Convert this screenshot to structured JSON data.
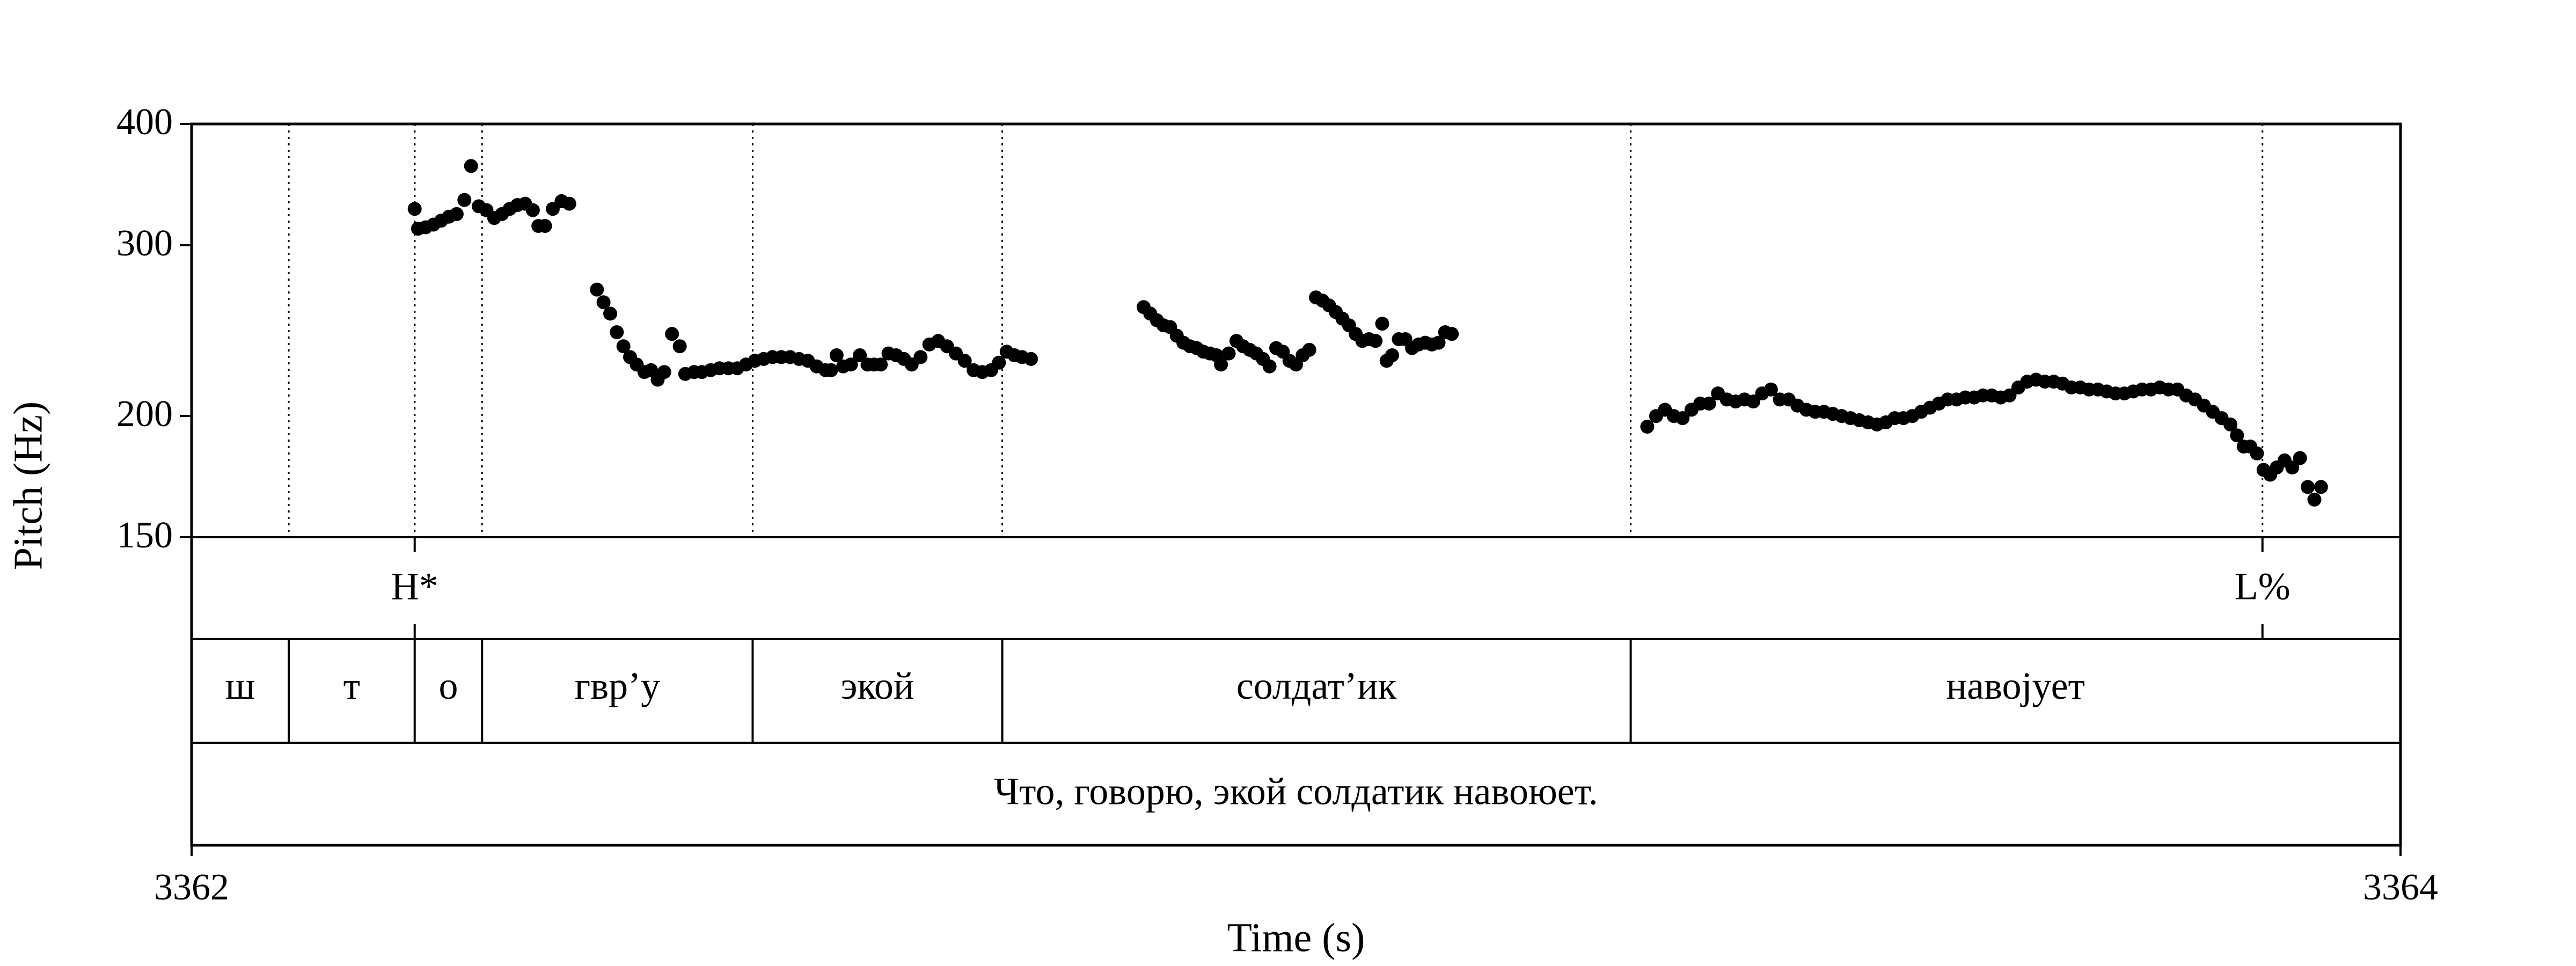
{
  "chart_data": {
    "type": "scatter",
    "title": "",
    "xlabel": "Time (s)",
    "ylabel": "Pitch (Hz)",
    "xlim": [
      3362,
      3364
    ],
    "ylim": [
      150,
      400
    ],
    "y_scale": "log",
    "x_ticks": [
      "3362",
      "3364"
    ],
    "y_ticks": [
      {
        "label": "400",
        "value": 400
      },
      {
        "label": "300",
        "value": 300
      },
      {
        "label": "200",
        "value": 200
      },
      {
        "label": "150",
        "value": 150
      }
    ],
    "tone_tier": [
      {
        "label": "H*",
        "time": 3362.202
      },
      {
        "label": "L%",
        "time": 3363.875
      }
    ],
    "segments": [
      {
        "label": "ш",
        "start": 3362.0,
        "end": 3362.088
      },
      {
        "label": "т",
        "start": 3362.088,
        "end": 3362.202
      },
      {
        "label": "о",
        "start": 3362.202,
        "end": 3362.263
      },
      {
        "label": "гвр’у",
        "start": 3362.263,
        "end": 3362.508
      },
      {
        "label": "экой",
        "start": 3362.508,
        "end": 3362.734
      },
      {
        "label": "солдат’ик",
        "start": 3362.734,
        "end": 3363.303
      },
      {
        "label": "навојует",
        "start": 3363.303,
        "end": 3364.0
      }
    ],
    "sentence": "Что, говорю, экой солдатик навоюет.",
    "pitch_points": [
      [
        3362.202,
        327
      ],
      [
        3362.205,
        312
      ],
      [
        3362.212,
        313
      ],
      [
        3362.219,
        315
      ],
      [
        3362.226,
        318
      ],
      [
        3362.233,
        321
      ],
      [
        3362.24,
        323
      ],
      [
        3362.247,
        334
      ],
      [
        3362.253,
        362
      ],
      [
        3362.26,
        329
      ],
      [
        3362.267,
        326
      ],
      [
        3362.274,
        320
      ],
      [
        3362.281,
        323
      ],
      [
        3362.288,
        327
      ],
      [
        3362.295,
        330
      ],
      [
        3362.302,
        331
      ],
      [
        3362.309,
        326
      ],
      [
        3362.314,
        314
      ],
      [
        3362.32,
        314
      ],
      [
        3362.327,
        327
      ],
      [
        3362.335,
        333
      ],
      [
        3362.342,
        331
      ],
      [
        3362.367,
        270
      ],
      [
        3362.373,
        262
      ],
      [
        3362.379,
        255
      ],
      [
        3362.385,
        244
      ],
      [
        3362.391,
        236
      ],
      [
        3362.397,
        230
      ],
      [
        3362.403,
        226
      ],
      [
        3362.41,
        222
      ],
      [
        3362.416,
        223
      ],
      [
        3362.422,
        218
      ],
      [
        3362.428,
        222
      ],
      [
        3362.435,
        243
      ],
      [
        3362.442,
        236
      ],
      [
        3362.447,
        221
      ],
      [
        3362.455,
        222
      ],
      [
        3362.462,
        222
      ],
      [
        3362.47,
        223
      ],
      [
        3362.478,
        224
      ],
      [
        3362.486,
        224
      ],
      [
        3362.494,
        224
      ],
      [
        3362.502,
        226
      ],
      [
        3362.51,
        228
      ],
      [
        3362.518,
        229
      ],
      [
        3362.526,
        230
      ],
      [
        3362.534,
        230
      ],
      [
        3362.542,
        230
      ],
      [
        3362.55,
        229
      ],
      [
        3362.558,
        228
      ],
      [
        3362.566,
        225
      ],
      [
        3362.574,
        223
      ],
      [
        3362.579,
        223
      ],
      [
        3362.584,
        231
      ],
      [
        3362.59,
        225
      ],
      [
        3362.597,
        226
      ],
      [
        3362.605,
        231
      ],
      [
        3362.612,
        226
      ],
      [
        3362.618,
        226
      ],
      [
        3362.624,
        226
      ],
      [
        3362.631,
        232
      ],
      [
        3362.638,
        231
      ],
      [
        3362.645,
        229
      ],
      [
        3362.652,
        226
      ],
      [
        3362.66,
        230
      ],
      [
        3362.668,
        237
      ],
      [
        3362.676,
        239
      ],
      [
        3362.684,
        236
      ],
      [
        3362.692,
        232
      ],
      [
        3362.7,
        228
      ],
      [
        3362.708,
        223
      ],
      [
        3362.716,
        222
      ],
      [
        3362.724,
        223
      ],
      [
        3362.731,
        227
      ],
      [
        3362.738,
        233
      ],
      [
        3362.745,
        231
      ],
      [
        3362.752,
        230
      ],
      [
        3362.76,
        229
      ],
      [
        3362.862,
        259
      ],
      [
        3362.868,
        255
      ],
      [
        3362.874,
        251
      ],
      [
        3362.88,
        248
      ],
      [
        3362.886,
        247
      ],
      [
        3362.892,
        242
      ],
      [
        3362.898,
        238
      ],
      [
        3362.904,
        236
      ],
      [
        3362.91,
        235
      ],
      [
        3362.916,
        233
      ],
      [
        3362.922,
        232
      ],
      [
        3362.928,
        231
      ],
      [
        3362.932,
        226
      ],
      [
        3362.939,
        232
      ],
      [
        3362.946,
        239
      ],
      [
        3362.952,
        236
      ],
      [
        3362.958,
        234
      ],
      [
        3362.964,
        232
      ],
      [
        3362.97,
        229
      ],
      [
        3362.976,
        225
      ],
      [
        3362.982,
        235
      ],
      [
        3362.988,
        233
      ],
      [
        3362.994,
        228
      ],
      [
        3363.0,
        226
      ],
      [
        3363.006,
        231
      ],
      [
        3363.012,
        234
      ],
      [
        3363.018,
        265
      ],
      [
        3363.024,
        263
      ],
      [
        3363.03,
        260
      ],
      [
        3363.036,
        256
      ],
      [
        3363.042,
        252
      ],
      [
        3363.048,
        248
      ],
      [
        3363.054,
        243
      ],
      [
        3363.06,
        239
      ],
      [
        3363.066,
        240
      ],
      [
        3363.072,
        239
      ],
      [
        3363.078,
        249
      ],
      [
        3363.082,
        228
      ],
      [
        3363.087,
        231
      ],
      [
        3363.093,
        240
      ],
      [
        3363.099,
        240
      ],
      [
        3363.105,
        235
      ],
      [
        3363.111,
        237
      ],
      [
        3363.117,
        238
      ],
      [
        3363.123,
        237
      ],
      [
        3363.129,
        238
      ],
      [
        3363.135,
        244
      ],
      [
        3363.141,
        243
      ],
      [
        3363.318,
        195
      ],
      [
        3363.326,
        200
      ],
      [
        3363.334,
        203
      ],
      [
        3363.342,
        200
      ],
      [
        3363.35,
        199
      ],
      [
        3363.358,
        203
      ],
      [
        3363.366,
        206
      ],
      [
        3363.374,
        206
      ],
      [
        3363.382,
        211
      ],
      [
        3363.39,
        208
      ],
      [
        3363.398,
        207
      ],
      [
        3363.406,
        208
      ],
      [
        3363.414,
        207
      ],
      [
        3363.422,
        211
      ],
      [
        3363.43,
        213
      ],
      [
        3363.438,
        208
      ],
      [
        3363.446,
        208
      ],
      [
        3363.454,
        205
      ],
      [
        3363.462,
        203
      ],
      [
        3363.47,
        202
      ],
      [
        3363.478,
        202
      ],
      [
        3363.486,
        201
      ],
      [
        3363.494,
        200
      ],
      [
        3363.502,
        199
      ],
      [
        3363.51,
        198
      ],
      [
        3363.518,
        197
      ],
      [
        3363.526,
        196
      ],
      [
        3363.534,
        197
      ],
      [
        3363.542,
        199
      ],
      [
        3363.55,
        199
      ],
      [
        3363.558,
        200
      ],
      [
        3363.566,
        202
      ],
      [
        3363.574,
        204
      ],
      [
        3363.582,
        206
      ],
      [
        3363.59,
        208
      ],
      [
        3363.598,
        208
      ],
      [
        3363.606,
        209
      ],
      [
        3363.614,
        209
      ],
      [
        3363.622,
        210
      ],
      [
        3363.63,
        210
      ],
      [
        3363.638,
        209
      ],
      [
        3363.646,
        210
      ],
      [
        3363.654,
        214
      ],
      [
        3363.662,
        217
      ],
      [
        3363.67,
        218
      ],
      [
        3363.678,
        217
      ],
      [
        3363.686,
        217
      ],
      [
        3363.694,
        216
      ],
      [
        3363.702,
        214
      ],
      [
        3363.71,
        214
      ],
      [
        3363.718,
        213
      ],
      [
        3363.726,
        213
      ],
      [
        3363.734,
        212
      ],
      [
        3363.742,
        211
      ],
      [
        3363.75,
        211
      ],
      [
        3363.758,
        212
      ],
      [
        3363.766,
        213
      ],
      [
        3363.774,
        213
      ],
      [
        3363.782,
        214
      ],
      [
        3363.79,
        213
      ],
      [
        3363.798,
        213
      ],
      [
        3363.806,
        210
      ],
      [
        3363.814,
        208
      ],
      [
        3363.822,
        205
      ],
      [
        3363.83,
        202
      ],
      [
        3363.838,
        199
      ],
      [
        3363.846,
        196
      ],
      [
        3363.852,
        191
      ],
      [
        3363.858,
        186
      ],
      [
        3363.864,
        186
      ],
      [
        3363.87,
        183
      ],
      [
        3363.876,
        176
      ],
      [
        3363.882,
        174
      ],
      [
        3363.888,
        177
      ],
      [
        3363.895,
        180
      ],
      [
        3363.902,
        177
      ],
      [
        3363.909,
        181
      ],
      [
        3363.916,
        169
      ],
      [
        3363.922,
        164
      ],
      [
        3363.928,
        169
      ]
    ]
  }
}
